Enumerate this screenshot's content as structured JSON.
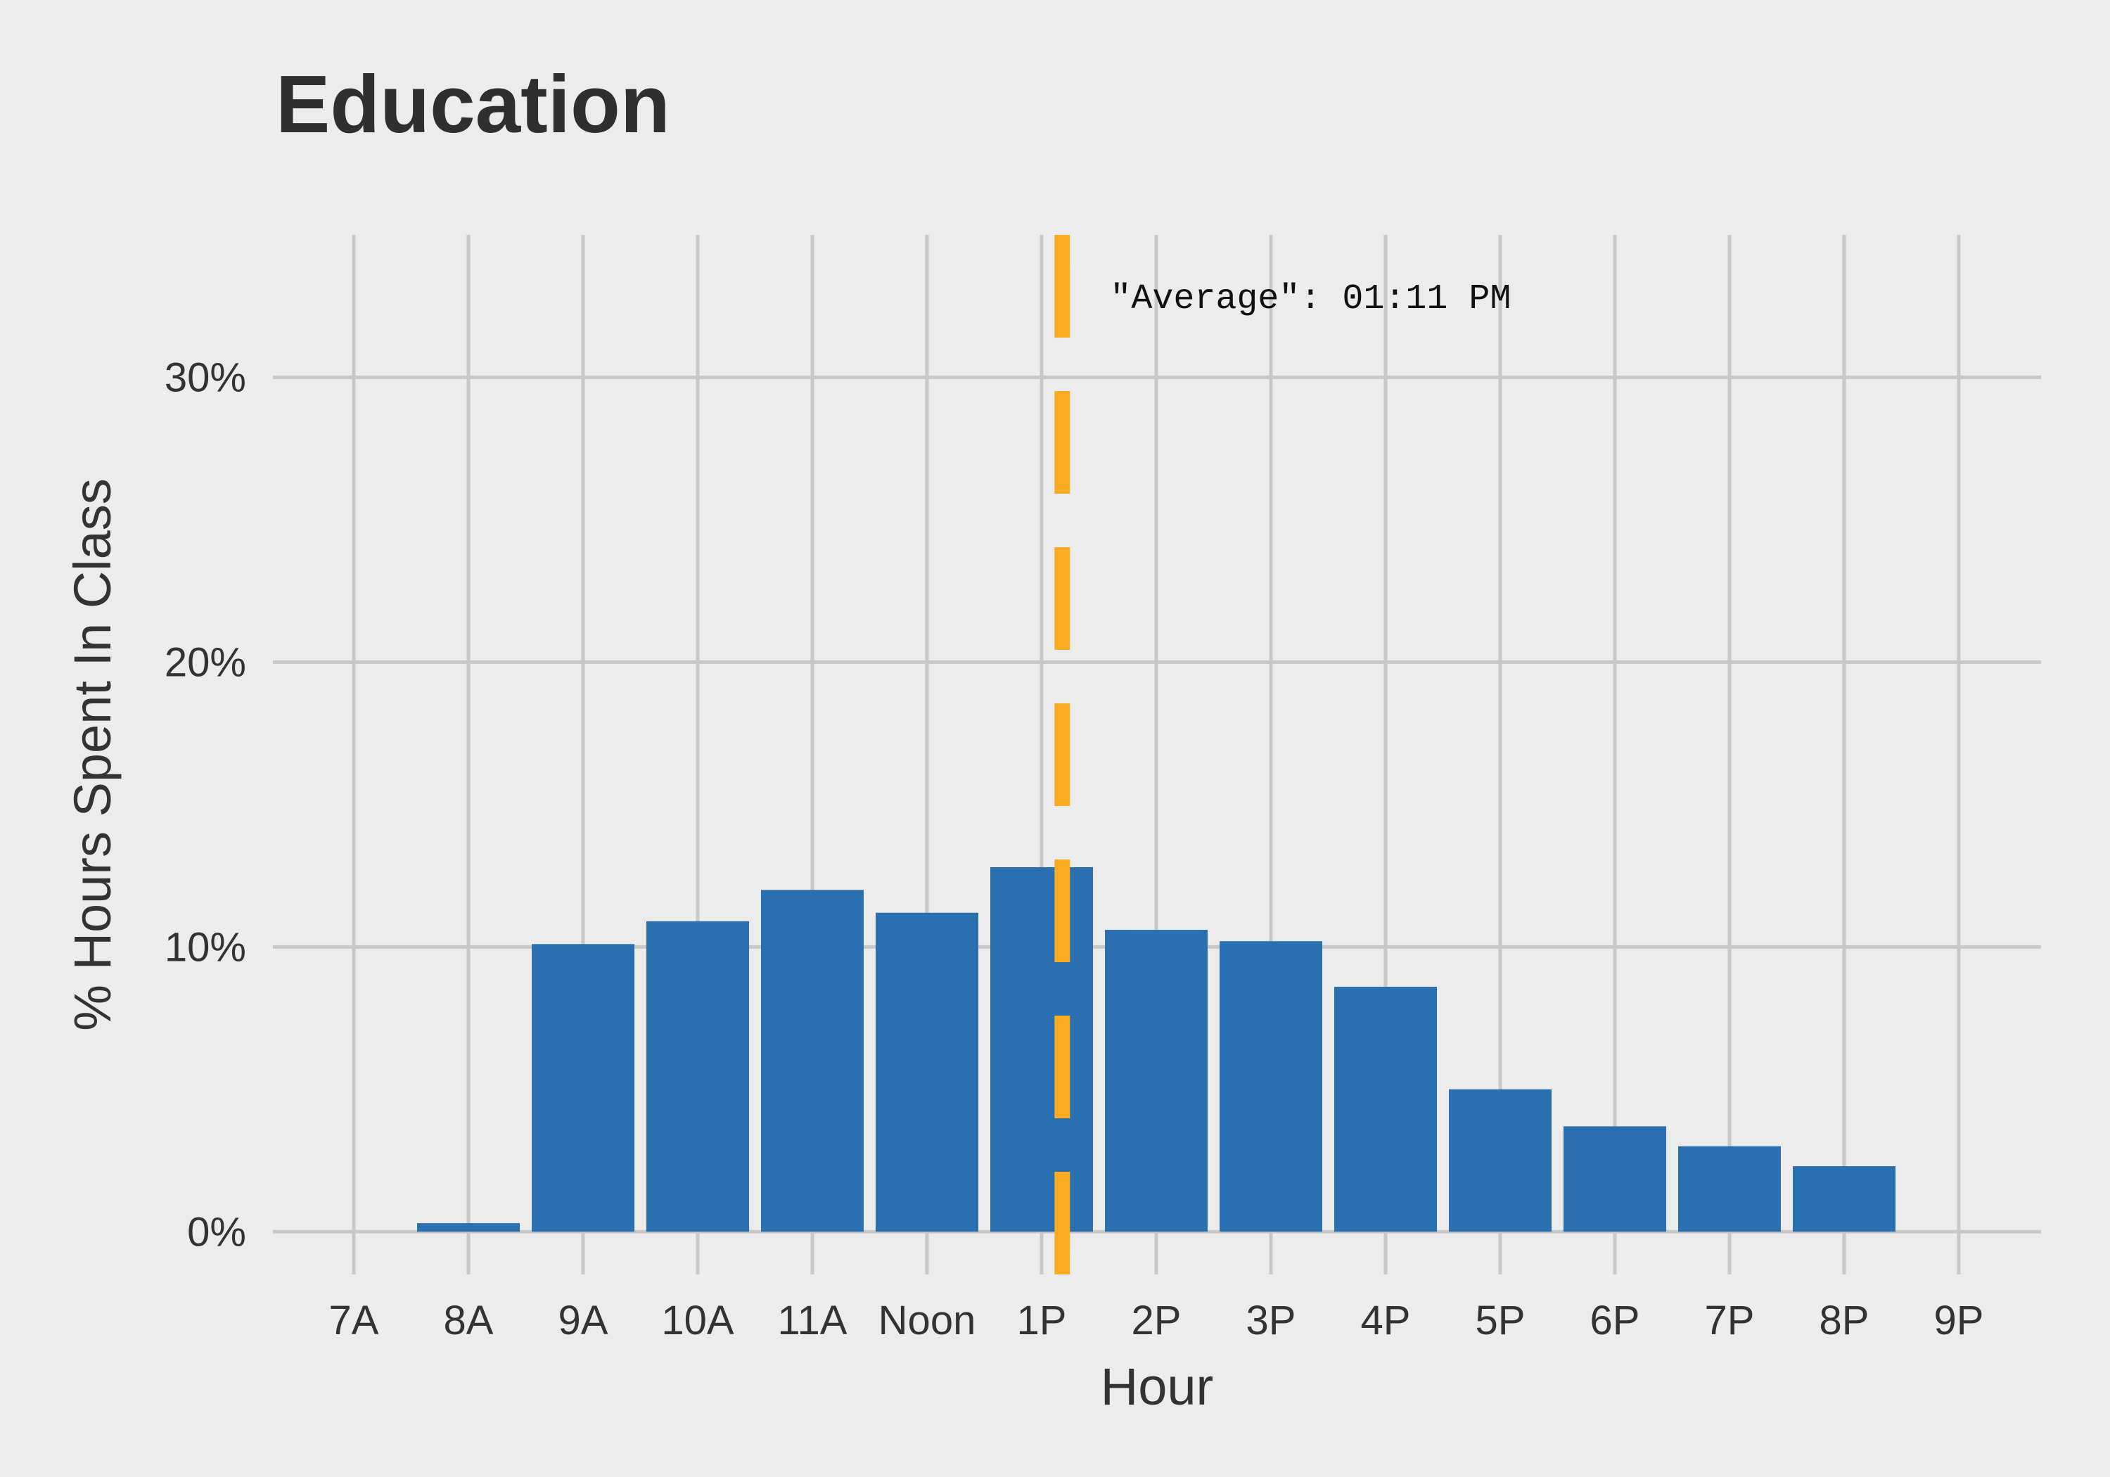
{
  "chart_data": {
    "type": "bar",
    "title": "Education",
    "xlabel": "Hour",
    "ylabel": "% Hours Spent In Class",
    "categories": [
      "7A",
      "8A",
      "9A",
      "10A",
      "11A",
      "Noon",
      "1P",
      "2P",
      "3P",
      "4P",
      "5P",
      "6P",
      "7P",
      "8P",
      "9P"
    ],
    "values": [
      0,
      0.3,
      10.1,
      10.9,
      12.0,
      11.2,
      12.8,
      10.6,
      10.2,
      8.6,
      5.0,
      3.7,
      3.0,
      2.3,
      0
    ],
    "ylim": [
      -1.5,
      35
    ],
    "yticks": [
      0,
      10,
      20,
      30
    ],
    "ytick_labels": [
      "0%",
      "10%",
      "20%",
      "30%"
    ],
    "grid": true,
    "bar_color": "#2a6faf",
    "annotation": {
      "text": "\"Average\": 01:11 PM",
      "x_hour": 13.18,
      "color": "#f9ab22",
      "style": "dashed"
    }
  }
}
